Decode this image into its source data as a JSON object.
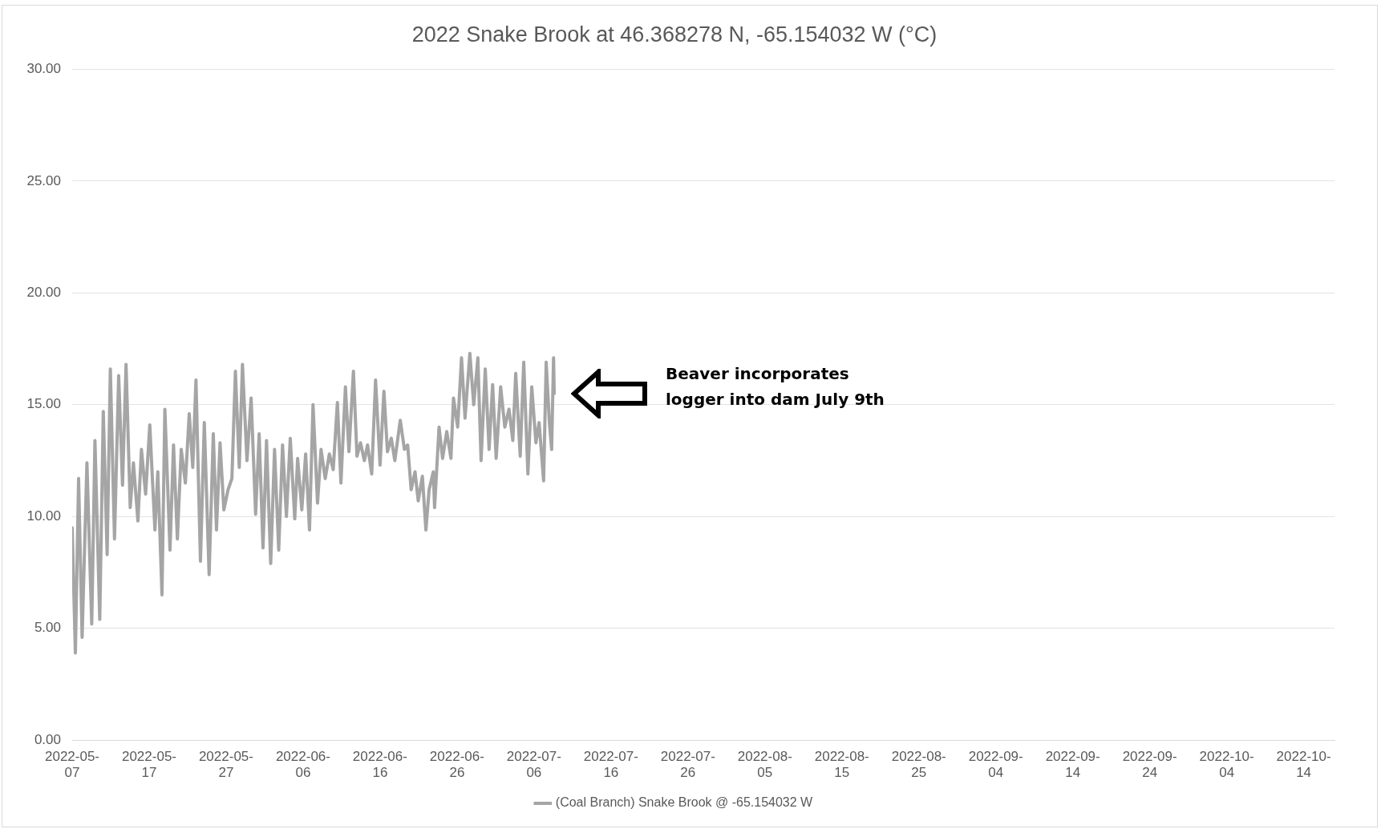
{
  "chart_data": {
    "type": "line",
    "title": "2022 Snake Brook at 46.368278 N, -65.154032 W (°C)",
    "annotations": [
      "Beaver incorporates logger into dam July 9th"
    ],
    "legend": "bottom",
    "grid": "y",
    "marker": "none",
    "line_style": "solid",
    "xlim": [
      "2022-05-07",
      "2022-10-18"
    ],
    "xticks": [
      "2022-05-07",
      "2022-05-17",
      "2022-05-27",
      "2022-06-06",
      "2022-06-16",
      "2022-06-26",
      "2022-07-06",
      "2022-07-16",
      "2022-07-26",
      "2022-08-05",
      "2022-08-15",
      "2022-08-25",
      "2022-09-04",
      "2022-09-14",
      "2022-09-24",
      "2022-10-04",
      "2022-10-14"
    ],
    "ylim": [
      0,
      30
    ],
    "yticks": [
      {
        "value": 0,
        "label": "0.00"
      },
      {
        "value": 5,
        "label": "5.00"
      },
      {
        "value": 10,
        "label": "10.00"
      },
      {
        "value": 15,
        "label": "15.00"
      },
      {
        "value": 20,
        "label": "20.00"
      },
      {
        "value": 25,
        "label": "25.00"
      },
      {
        "value": 30,
        "label": "30.00"
      }
    ],
    "series": [
      {
        "name": "(Coal Branch) Snake Brook @ -65.154032 W",
        "color": "#a5a5a5",
        "x": [
          "2022-05-07T00:00",
          "2022-05-07T10:00",
          "2022-05-07T20:00",
          "2022-05-08T07:00",
          "2022-05-08T22:00",
          "2022-05-09T13:00",
          "2022-05-09T23:00",
          "2022-05-10T14:00",
          "2022-05-11T01:00",
          "2022-05-11T13:00",
          "2022-05-11T23:00",
          "2022-05-12T12:00",
          "2022-05-13T01:00",
          "2022-05-13T13:00",
          "2022-05-14T00:00",
          "2022-05-14T13:00",
          "2022-05-14T23:00",
          "2022-05-15T13:00",
          "2022-05-16T00:00",
          "2022-05-16T13:00",
          "2022-05-17T02:00",
          "2022-05-17T18:00",
          "2022-05-18T03:00",
          "2022-05-18T16:00",
          "2022-05-19T01:00",
          "2022-05-19T17:00",
          "2022-05-20T04:00",
          "2022-05-20T16:00",
          "2022-05-21T04:00",
          "2022-05-21T17:00",
          "2022-05-22T05:00",
          "2022-05-22T16:00",
          "2022-05-23T02:00",
          "2022-05-23T16:00",
          "2022-05-24T04:00",
          "2022-05-24T19:00",
          "2022-05-25T08:00",
          "2022-05-25T18:00",
          "2022-05-26T05:00",
          "2022-05-26T17:00",
          "2022-05-27T06:00",
          "2022-05-27T18:00",
          "2022-05-28T05:00",
          "2022-05-28T17:00",
          "2022-05-29T03:00",
          "2022-05-29T17:00",
          "2022-05-30T06:00",
          "2022-05-30T20:00",
          "2022-05-31T07:00",
          "2022-05-31T19:00",
          "2022-06-01T06:00",
          "2022-06-01T19:00",
          "2022-06-02T07:00",
          "2022-06-02T20:00",
          "2022-06-03T08:00",
          "2022-06-03T20:00",
          "2022-06-04T08:00",
          "2022-06-04T22:00",
          "2022-06-05T07:00",
          "2022-06-05T20:00",
          "2022-06-06T08:00",
          "2022-06-06T20:00",
          "2022-06-07T07:00",
          "2022-06-07T21:00",
          "2022-06-08T08:00",
          "2022-06-08T21:00",
          "2022-06-09T10:00",
          "2022-06-09T22:00",
          "2022-06-10T11:00",
          "2022-06-10T22:00",
          "2022-06-11T12:00",
          "2022-06-11T23:00",
          "2022-06-12T13:00",
          "2022-06-13T00:00",
          "2022-06-13T11:00",
          "2022-06-13T23:00",
          "2022-06-14T09:00",
          "2022-06-14T22:00",
          "2022-06-15T10:00",
          "2022-06-16T00:00",
          "2022-06-16T12:00",
          "2022-06-16T23:00",
          "2022-06-17T11:00",
          "2022-06-17T22:00",
          "2022-06-18T15:00",
          "2022-06-19T04:00",
          "2022-06-19T14:00",
          "2022-06-20T01:00",
          "2022-06-20T13:00",
          "2022-06-20T23:00",
          "2022-06-21T12:00",
          "2022-06-21T23:00",
          "2022-06-22T09:00",
          "2022-06-22T22:00",
          "2022-06-23T02:00",
          "2022-06-23T16:00",
          "2022-06-24T03:00",
          "2022-06-24T16:00",
          "2022-06-25T05:00",
          "2022-06-25T13:00",
          "2022-06-26T02:00",
          "2022-06-26T14:00",
          "2022-06-27T01:00",
          "2022-06-27T16:00",
          "2022-06-28T04:00",
          "2022-06-28T17:00",
          "2022-06-29T03:00",
          "2022-06-29T16:00",
          "2022-06-30T04:00",
          "2022-06-30T15:00",
          "2022-07-01T02:00",
          "2022-07-01T16:00",
          "2022-07-02T05:00",
          "2022-07-02T18:00",
          "2022-07-03T06:00",
          "2022-07-03T15:00",
          "2022-07-04T05:00",
          "2022-07-04T16:00",
          "2022-07-05T05:00",
          "2022-07-05T17:00",
          "2022-07-06T06:00",
          "2022-07-06T16:00",
          "2022-07-07T06:00",
          "2022-07-07T14:00",
          "2022-07-08T00:00",
          "2022-07-08T07:00",
          "2022-07-08T13:00",
          "2022-07-08T15:00"
        ],
        "values": [
          9.5,
          3.9,
          11.7,
          4.6,
          12.4,
          5.2,
          13.4,
          5.4,
          14.7,
          8.3,
          16.6,
          9.0,
          16.3,
          11.4,
          16.8,
          10.4,
          12.4,
          9.8,
          13.0,
          11.0,
          14.1,
          9.4,
          12.0,
          6.5,
          14.8,
          8.5,
          13.2,
          9.0,
          13.0,
          11.5,
          14.6,
          12.2,
          16.1,
          8.0,
          14.2,
          7.4,
          13.7,
          9.4,
          13.3,
          10.3,
          11.2,
          11.7,
          16.5,
          12.2,
          16.8,
          12.5,
          15.3,
          10.1,
          13.7,
          8.6,
          13.4,
          7.9,
          13.0,
          8.5,
          13.2,
          10.0,
          13.5,
          9.9,
          12.6,
          10.3,
          12.8,
          9.4,
          15.0,
          10.6,
          13.0,
          11.7,
          12.8,
          12.1,
          15.1,
          11.5,
          15.8,
          12.9,
          16.5,
          12.7,
          13.3,
          12.5,
          13.2,
          11.9,
          16.1,
          12.3,
          15.6,
          12.9,
          13.5,
          12.5,
          14.3,
          13.0,
          13.2,
          11.2,
          12.0,
          10.7,
          11.8,
          9.4,
          11.2,
          12.0,
          10.4,
          14.0,
          12.6,
          13.8,
          12.6,
          15.3,
          14.0,
          17.1,
          14.4,
          17.3,
          15.0,
          17.1,
          12.5,
          16.6,
          13.0,
          15.9,
          12.6,
          15.8,
          14.0,
          14.8,
          13.4,
          16.4,
          12.7,
          16.9,
          11.9,
          15.8,
          13.3,
          14.2,
          11.6,
          16.9,
          14.2,
          13.0,
          17.1,
          15.5
        ]
      }
    ]
  }
}
